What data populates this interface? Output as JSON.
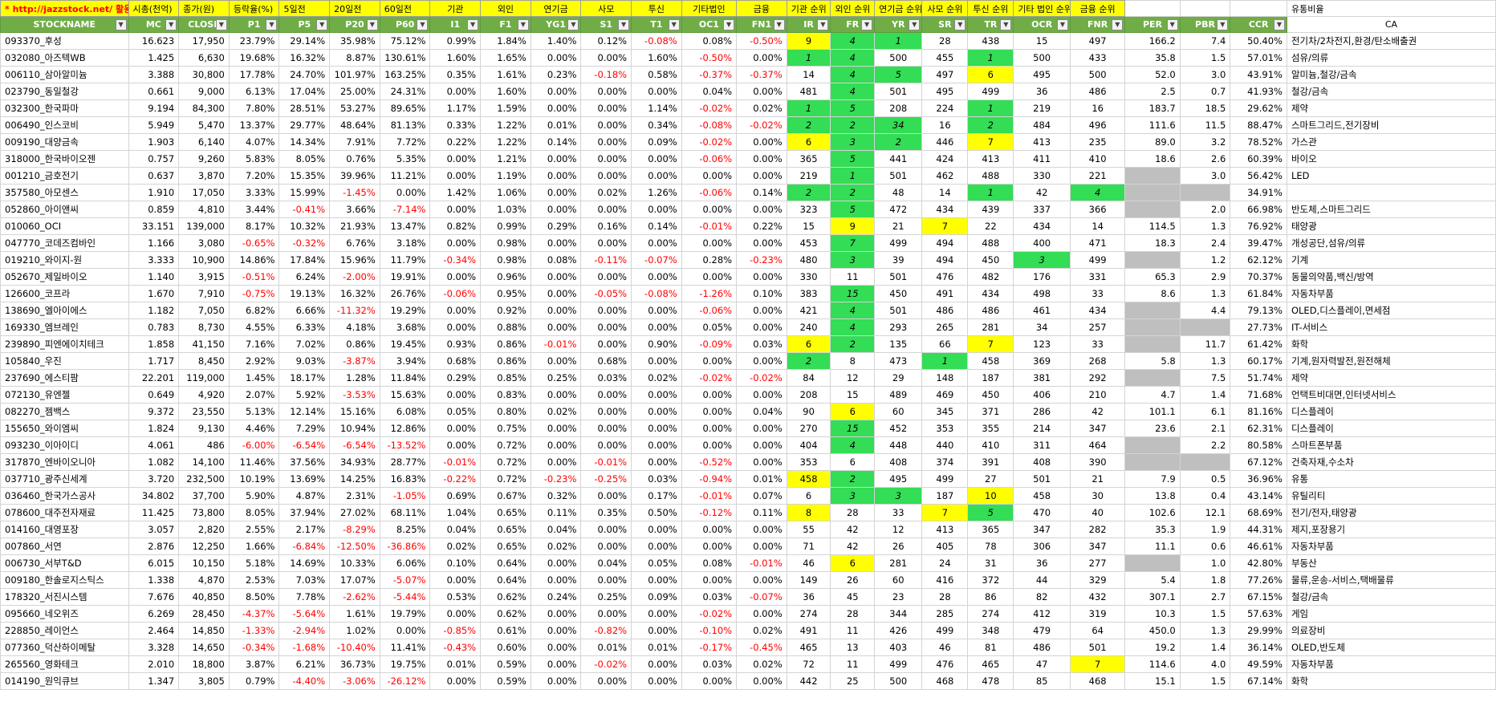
{
  "sheet": {
    "top_labels": [
      "* http://jazzstock.net/ 활용",
      "시총(천억)",
      "종가(원)",
      "등락율(%)",
      "5일전",
      "20일전",
      "60일전",
      "기관",
      "외인",
      "연기금",
      "사모",
      "투신",
      "기타법인",
      "금융",
      "기관 순위",
      "외인 순위",
      "연기금 순위",
      "사모 순위",
      "투신 순위",
      "기타 법인 순위",
      "금융 순위",
      "",
      "",
      "",
      "유통비율"
    ],
    "headers": [
      "STOCKNAME",
      "MC",
      "CLOSE",
      "P1",
      "P5",
      "P20",
      "P60",
      "I1",
      "F1",
      "YG1",
      "S1",
      "T1",
      "OC1",
      "FN1",
      "IR",
      "FR",
      "YR",
      "SR",
      "TR",
      "OCR",
      "FNR",
      "PER",
      "PBR",
      "CCR",
      "CA"
    ],
    "rows": [
      [
        "093370_후성",
        "16.623",
        "17,950",
        "23.79%",
        "29.14%",
        "35.98%",
        "75.12%",
        "0.99%",
        "1.84%",
        "1.40%",
        "0.12%",
        "-0.08%",
        "0.08%",
        "-0.50%",
        "9",
        "4",
        "1",
        "28",
        "438",
        "15",
        "497",
        "166.2",
        "7.4",
        "50.40%",
        "전기차/2차전지,환경/탄소배출권"
      ],
      [
        "032080_아즈텍WB",
        "1.425",
        "6,630",
        "19.68%",
        "16.32%",
        "8.87%",
        "130.61%",
        "1.60%",
        "1.65%",
        "0.00%",
        "0.00%",
        "1.60%",
        "-0.50%",
        "0.00%",
        "1",
        "4",
        "500",
        "455",
        "1",
        "500",
        "433",
        "35.8",
        "1.5",
        "57.01%",
        "섬유/의류"
      ],
      [
        "006110_삼아알미늄",
        "3.388",
        "30,800",
        "17.78%",
        "24.70%",
        "101.97%",
        "163.25%",
        "0.35%",
        "1.61%",
        "0.23%",
        "-0.18%",
        "0.58%",
        "-0.37%",
        "-0.37%",
        "14",
        "4",
        "5",
        "497",
        "6",
        "495",
        "500",
        "52.0",
        "3.0",
        "43.91%",
        "알미늄,철강/금속"
      ],
      [
        "023790_동일철강",
        "0.661",
        "9,000",
        "6.13%",
        "17.04%",
        "25.00%",
        "24.31%",
        "0.00%",
        "1.60%",
        "0.00%",
        "0.00%",
        "0.00%",
        "0.04%",
        "0.00%",
        "481",
        "4",
        "501",
        "495",
        "499",
        "36",
        "486",
        "2.5",
        "0.7",
        "41.93%",
        "철강/금속"
      ],
      [
        "032300_한국파마",
        "9.194",
        "84,300",
        "7.80%",
        "28.51%",
        "53.27%",
        "89.65%",
        "1.17%",
        "1.59%",
        "0.00%",
        "0.00%",
        "1.14%",
        "-0.02%",
        "0.02%",
        "1",
        "5",
        "208",
        "224",
        "1",
        "219",
        "16",
        "183.7",
        "18.5",
        "29.62%",
        "제약"
      ],
      [
        "006490_인스코비",
        "5.949",
        "5,470",
        "13.37%",
        "29.77%",
        "48.64%",
        "81.13%",
        "0.33%",
        "1.22%",
        "0.01%",
        "0.00%",
        "0.34%",
        "-0.08%",
        "-0.02%",
        "2",
        "2",
        "34",
        "16",
        "2",
        "484",
        "496",
        "111.6",
        "11.5",
        "88.47%",
        "스마트그리드,전기장비"
      ],
      [
        "009190_대양금속",
        "1.903",
        "6,140",
        "4.07%",
        "14.34%",
        "7.91%",
        "7.72%",
        "0.22%",
        "1.22%",
        "0.14%",
        "0.00%",
        "0.09%",
        "-0.02%",
        "0.00%",
        "6",
        "3",
        "2",
        "446",
        "7",
        "413",
        "235",
        "89.0",
        "3.2",
        "78.52%",
        "가스관"
      ],
      [
        "318000_한국바이오젠",
        "0.757",
        "9,260",
        "5.83%",
        "8.05%",
        "0.76%",
        "5.35%",
        "0.00%",
        "1.21%",
        "0.00%",
        "0.00%",
        "0.00%",
        "-0.06%",
        "0.00%",
        "365",
        "5",
        "441",
        "424",
        "413",
        "411",
        "410",
        "18.6",
        "2.6",
        "60.39%",
        "바이오"
      ],
      [
        "001210_금호전기",
        "0.637",
        "3,870",
        "7.20%",
        "15.35%",
        "39.96%",
        "11.21%",
        "0.00%",
        "1.19%",
        "0.00%",
        "0.00%",
        "0.00%",
        "0.00%",
        "0.00%",
        "219",
        "1",
        "501",
        "462",
        "488",
        "330",
        "221",
        "",
        "3.0",
        "56.42%",
        "LED"
      ],
      [
        "357580_아모센스",
        "1.910",
        "17,050",
        "3.33%",
        "15.99%",
        "-1.45%",
        "0.00%",
        "1.42%",
        "1.06%",
        "0.00%",
        "0.02%",
        "1.26%",
        "-0.06%",
        "0.14%",
        "2",
        "2",
        "48",
        "14",
        "1",
        "42",
        "4",
        "",
        "",
        "34.91%",
        ""
      ],
      [
        "052860_아이앤씨",
        "0.859",
        "4,810",
        "3.44%",
        "-0.41%",
        "3.66%",
        "-7.14%",
        "0.00%",
        "1.03%",
        "0.00%",
        "0.00%",
        "0.00%",
        "0.00%",
        "0.00%",
        "323",
        "5",
        "472",
        "434",
        "439",
        "337",
        "366",
        "",
        "2.0",
        "66.98%",
        "반도체,스마트그리드"
      ],
      [
        "010060_OCI",
        "33.151",
        "139,000",
        "8.17%",
        "10.32%",
        "21.93%",
        "13.47%",
        "0.82%",
        "0.99%",
        "0.29%",
        "0.16%",
        "0.14%",
        "-0.01%",
        "0.22%",
        "15",
        "9",
        "21",
        "7",
        "22",
        "434",
        "14",
        "114.5",
        "1.3",
        "76.92%",
        "태양광"
      ],
      [
        "047770_코데즈컴바인",
        "1.166",
        "3,080",
        "-0.65%",
        "-0.32%",
        "6.76%",
        "3.18%",
        "0.00%",
        "0.98%",
        "0.00%",
        "0.00%",
        "0.00%",
        "0.00%",
        "0.00%",
        "453",
        "7",
        "499",
        "494",
        "488",
        "400",
        "471",
        "18.3",
        "2.4",
        "39.47%",
        "개성공단,섬유/의류"
      ],
      [
        "019210_와이지-원",
        "3.333",
        "10,900",
        "14.86%",
        "17.84%",
        "15.96%",
        "11.79%",
        "-0.34%",
        "0.98%",
        "0.08%",
        "-0.11%",
        "-0.07%",
        "0.28%",
        "-0.23%",
        "480",
        "3",
        "39",
        "494",
        "450",
        "3",
        "499",
        "",
        "1.2",
        "62.12%",
        "기계"
      ],
      [
        "052670_제일바이오",
        "1.140",
        "3,915",
        "-0.51%",
        "6.24%",
        "-2.00%",
        "19.91%",
        "0.00%",
        "0.96%",
        "0.00%",
        "0.00%",
        "0.00%",
        "0.00%",
        "0.00%",
        "330",
        "11",
        "501",
        "476",
        "482",
        "176",
        "331",
        "65.3",
        "2.9",
        "70.37%",
        "동물의약품,백신/방역"
      ],
      [
        "126600_코프라",
        "1.670",
        "7,910",
        "-0.75%",
        "19.13%",
        "16.32%",
        "26.76%",
        "-0.06%",
        "0.95%",
        "0.00%",
        "-0.05%",
        "-0.08%",
        "-1.26%",
        "0.10%",
        "383",
        "15",
        "450",
        "491",
        "434",
        "498",
        "33",
        "8.6",
        "1.3",
        "61.84%",
        "자동차부품"
      ],
      [
        "138690_엘아이에스",
        "1.182",
        "7,050",
        "6.82%",
        "6.66%",
        "-11.32%",
        "19.29%",
        "0.00%",
        "0.92%",
        "0.00%",
        "0.00%",
        "0.00%",
        "-0.06%",
        "0.00%",
        "421",
        "4",
        "501",
        "486",
        "486",
        "461",
        "434",
        "",
        "4.4",
        "79.13%",
        "OLED,디스플레이,면세점"
      ],
      [
        "169330_엠브레인",
        "0.783",
        "8,730",
        "4.55%",
        "6.33%",
        "4.18%",
        "3.68%",
        "0.00%",
        "0.88%",
        "0.00%",
        "0.00%",
        "0.00%",
        "0.05%",
        "0.00%",
        "240",
        "4",
        "293",
        "265",
        "281",
        "34",
        "257",
        "",
        "",
        "27.73%",
        "IT-서비스"
      ],
      [
        "239890_피엔에이치테크",
        "1.858",
        "41,150",
        "7.16%",
        "7.02%",
        "0.86%",
        "19.45%",
        "0.93%",
        "0.86%",
        "-0.01%",
        "0.00%",
        "0.90%",
        "-0.09%",
        "0.03%",
        "6",
        "2",
        "135",
        "66",
        "7",
        "123",
        "33",
        "",
        "11.7",
        "61.42%",
        "화학"
      ],
      [
        "105840_우진",
        "1.717",
        "8,450",
        "2.92%",
        "9.03%",
        "-3.87%",
        "3.94%",
        "0.68%",
        "0.86%",
        "0.00%",
        "0.68%",
        "0.00%",
        "0.00%",
        "0.00%",
        "2",
        "8",
        "473",
        "1",
        "458",
        "369",
        "268",
        "5.8",
        "1.3",
        "60.17%",
        "기계,원자력발전,원전해체"
      ],
      [
        "237690_에스티팜",
        "22.201",
        "119,000",
        "1.45%",
        "18.17%",
        "1.28%",
        "11.84%",
        "0.29%",
        "0.85%",
        "0.25%",
        "0.03%",
        "0.02%",
        "-0.02%",
        "-0.02%",
        "84",
        "12",
        "29",
        "148",
        "187",
        "381",
        "292",
        "",
        "7.5",
        "51.74%",
        "제약"
      ],
      [
        "072130_유엔젤",
        "0.649",
        "4,920",
        "2.07%",
        "5.92%",
        "-3.53%",
        "15.63%",
        "0.00%",
        "0.83%",
        "0.00%",
        "0.00%",
        "0.00%",
        "0.00%",
        "0.00%",
        "208",
        "15",
        "489",
        "469",
        "450",
        "406",
        "210",
        "4.7",
        "1.4",
        "71.68%",
        "언택트비대면,인터넷서비스"
      ],
      [
        "082270_젬백스",
        "9.372",
        "23,550",
        "5.13%",
        "12.14%",
        "15.16%",
        "6.08%",
        "0.05%",
        "0.80%",
        "0.02%",
        "0.00%",
        "0.00%",
        "0.00%",
        "0.04%",
        "90",
        "6",
        "60",
        "345",
        "371",
        "286",
        "42",
        "101.1",
        "6.1",
        "81.16%",
        "디스플레이"
      ],
      [
        "155650_와이엠씨",
        "1.824",
        "9,130",
        "4.46%",
        "7.29%",
        "10.94%",
        "12.86%",
        "0.00%",
        "0.75%",
        "0.00%",
        "0.00%",
        "0.00%",
        "0.00%",
        "0.00%",
        "270",
        "15",
        "452",
        "353",
        "355",
        "214",
        "347",
        "23.6",
        "2.1",
        "62.31%",
        "디스플레이"
      ],
      [
        "093230_이아이디",
        "4.061",
        "486",
        "-6.00%",
        "-6.54%",
        "-6.54%",
        "-13.52%",
        "0.00%",
        "0.72%",
        "0.00%",
        "0.00%",
        "0.00%",
        "0.00%",
        "0.00%",
        "404",
        "4",
        "448",
        "440",
        "410",
        "311",
        "464",
        "",
        "2.2",
        "80.58%",
        "스마트폰부품"
      ],
      [
        "317870_엔바이오니아",
        "1.082",
        "14,100",
        "11.46%",
        "37.56%",
        "34.93%",
        "28.77%",
        "-0.01%",
        "0.72%",
        "0.00%",
        "-0.01%",
        "0.00%",
        "-0.52%",
        "0.00%",
        "353",
        "6",
        "408",
        "374",
        "391",
        "408",
        "390",
        "",
        "",
        "67.12%",
        "건축자재,수소차"
      ],
      [
        "037710_광주신세계",
        "3.720",
        "232,500",
        "10.19%",
        "13.69%",
        "14.25%",
        "16.83%",
        "-0.22%",
        "0.72%",
        "-0.23%",
        "-0.25%",
        "0.03%",
        "-0.94%",
        "0.01%",
        "458",
        "2",
        "495",
        "499",
        "27",
        "501",
        "21",
        "7.9",
        "0.5",
        "36.96%",
        "유통"
      ],
      [
        "036460_한국가스공사",
        "34.802",
        "37,700",
        "5.90%",
        "4.87%",
        "2.31%",
        "-1.05%",
        "0.69%",
        "0.67%",
        "0.32%",
        "0.00%",
        "0.17%",
        "-0.01%",
        "0.07%",
        "6",
        "3",
        "3",
        "187",
        "10",
        "458",
        "30",
        "13.8",
        "0.4",
        "43.14%",
        "유틸리티"
      ],
      [
        "078600_대주전자재료",
        "11.425",
        "73,800",
        "8.05%",
        "37.94%",
        "27.02%",
        "68.11%",
        "1.04%",
        "0.65%",
        "0.11%",
        "0.35%",
        "0.50%",
        "-0.12%",
        "0.11%",
        "8",
        "28",
        "33",
        "7",
        "5",
        "470",
        "40",
        "102.6",
        "12.1",
        "68.69%",
        "전기/전자,태양광"
      ],
      [
        "014160_대영포장",
        "3.057",
        "2,820",
        "2.55%",
        "2.17%",
        "-8.29%",
        "8.25%",
        "0.04%",
        "0.65%",
        "0.04%",
        "0.00%",
        "0.00%",
        "0.00%",
        "0.00%",
        "55",
        "42",
        "12",
        "413",
        "365",
        "347",
        "282",
        "35.3",
        "1.9",
        "44.31%",
        "제지,포장용기"
      ],
      [
        "007860_서연",
        "2.876",
        "12,250",
        "1.66%",
        "-6.84%",
        "-12.50%",
        "-36.86%",
        "0.02%",
        "0.65%",
        "0.02%",
        "0.00%",
        "0.00%",
        "0.00%",
        "0.00%",
        "71",
        "42",
        "26",
        "405",
        "78",
        "306",
        "347",
        "11.1",
        "0.6",
        "46.61%",
        "자동차부품"
      ],
      [
        "006730_서부T&D",
        "6.015",
        "10,150",
        "5.18%",
        "14.69%",
        "10.33%",
        "6.06%",
        "0.10%",
        "0.64%",
        "0.00%",
        "0.04%",
        "0.05%",
        "0.08%",
        "-0.01%",
        "46",
        "6",
        "281",
        "24",
        "31",
        "36",
        "277",
        "",
        "1.0",
        "42.80%",
        "부동산"
      ],
      [
        "009180_한솔로지스틱스",
        "1.338",
        "4,870",
        "2.53%",
        "7.03%",
        "17.07%",
        "-5.07%",
        "0.00%",
        "0.64%",
        "0.00%",
        "0.00%",
        "0.00%",
        "0.00%",
        "0.00%",
        "149",
        "26",
        "60",
        "416",
        "372",
        "44",
        "329",
        "5.4",
        "1.8",
        "77.26%",
        "물류,운송-서비스,택배물류"
      ],
      [
        "178320_서진시스템",
        "7.676",
        "40,850",
        "8.50%",
        "7.78%",
        "-2.62%",
        "-5.44%",
        "0.53%",
        "0.62%",
        "0.24%",
        "0.25%",
        "0.09%",
        "0.03%",
        "-0.07%",
        "36",
        "45",
        "23",
        "28",
        "86",
        "82",
        "432",
        "307.1",
        "2.7",
        "67.15%",
        "철강/금속"
      ],
      [
        "095660_네오위즈",
        "6.269",
        "28,450",
        "-4.37%",
        "-5.64%",
        "1.61%",
        "19.79%",
        "0.00%",
        "0.62%",
        "0.00%",
        "0.00%",
        "0.00%",
        "-0.02%",
        "0.00%",
        "274",
        "28",
        "344",
        "285",
        "274",
        "412",
        "319",
        "10.3",
        "1.5",
        "57.63%",
        "게임"
      ],
      [
        "228850_레이언스",
        "2.464",
        "14,850",
        "-1.33%",
        "-2.94%",
        "1.02%",
        "0.00%",
        "-0.85%",
        "0.61%",
        "0.00%",
        "-0.82%",
        "0.00%",
        "-0.10%",
        "0.02%",
        "491",
        "11",
        "426",
        "499",
        "348",
        "479",
        "64",
        "450.0",
        "1.3",
        "29.99%",
        "의료장비"
      ],
      [
        "077360_덕산하이메탈",
        "3.328",
        "14,650",
        "-0.34%",
        "-1.68%",
        "-10.40%",
        "11.41%",
        "-0.43%",
        "0.60%",
        "0.00%",
        "0.01%",
        "0.01%",
        "-0.17%",
        "-0.45%",
        "465",
        "13",
        "403",
        "46",
        "81",
        "486",
        "501",
        "19.2",
        "1.4",
        "36.14%",
        "OLED,반도체"
      ],
      [
        "265560_영화테크",
        "2.010",
        "18,800",
        "3.87%",
        "6.21%",
        "36.73%",
        "19.75%",
        "0.01%",
        "0.59%",
        "0.00%",
        "-0.02%",
        "0.00%",
        "0.03%",
        "0.02%",
        "72",
        "11",
        "499",
        "476",
        "465",
        "47",
        "7",
        "114.6",
        "4.0",
        "49.59%",
        "자동차부품"
      ],
      [
        "014190_원익큐브",
        "1.347",
        "3,805",
        "0.79%",
        "-4.40%",
        "-3.06%",
        "-26.12%",
        "0.00%",
        "0.59%",
        "0.00%",
        "0.00%",
        "0.00%",
        "0.00%",
        "0.00%",
        "442",
        "25",
        "500",
        "468",
        "478",
        "85",
        "468",
        "15.1",
        "1.5",
        "67.14%",
        "화학"
      ]
    ],
    "highlights": {
      "yellow": [
        "0-14",
        "2-18",
        "6-14",
        "6-18",
        "11-15",
        "11-17",
        "18-14",
        "18-18",
        "22-15",
        "26-14",
        "27-18",
        "28-14",
        "28-17",
        "31-15",
        "37-20"
      ],
      "green": [
        "0-15",
        "0-16",
        "1-14",
        "1-15",
        "1-18",
        "2-15",
        "2-16",
        "3-15",
        "4-14",
        "4-15",
        "4-18",
        "5-14",
        "5-15",
        "5-16",
        "5-18",
        "6-15",
        "6-16",
        "7-15",
        "8-15",
        "9-14",
        "9-15",
        "9-18",
        "9-20",
        "10-15",
        "12-15",
        "13-15",
        "13-19",
        "15-15",
        "16-15",
        "17-15",
        "18-15",
        "19-14",
        "19-17",
        "23-15",
        "24-15",
        "26-15",
        "27-15",
        "27-16",
        "28-18"
      ],
      "gray": [
        "8-21",
        "9-21",
        "9-22",
        "10-21",
        "13-21",
        "16-21",
        "17-21",
        "17-22",
        "18-21",
        "20-21",
        "24-21",
        "25-21",
        "25-22",
        "31-21"
      ]
    },
    "colors": {
      "header_green": "#70ad47",
      "yellow": "#ffff00",
      "green": "#33dd55",
      "gray": "#bfbfbf",
      "negative": "#ff0000"
    }
  }
}
